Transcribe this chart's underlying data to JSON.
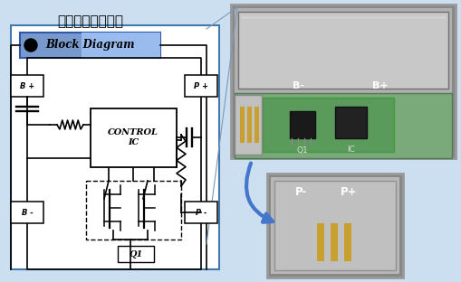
{
  "title": "锂离子电池的保护",
  "bg_color_left": "#ddeeff",
  "bg_color_right": "#c8e0f4",
  "diagram_border": "#5588bb",
  "block_diagram_text": "Block Diagram",
  "block_diagram_bg_left": "#aabbdd",
  "block_diagram_bg_right": "#8899cc",
  "control_ic_text": "CONTROL\nIC",
  "q1_label": "Q1",
  "b_plus_label": "B +",
  "b_minus_label": "B -",
  "p_plus_label": "P +",
  "p_minus_label": "P -",
  "photo1_b_minus": "B-",
  "photo1_b_plus": "B+",
  "photo1_q1": "Q1",
  "photo1_ic": "IC",
  "photo2_p_minus": "P-",
  "photo2_p_plus": "P+"
}
